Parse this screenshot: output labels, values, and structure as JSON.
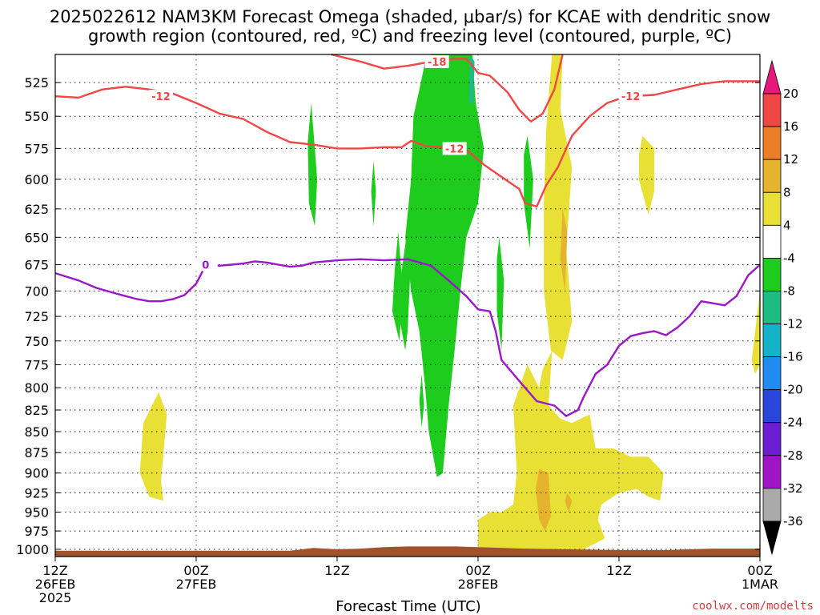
{
  "chart_data": {
    "type": "contour",
    "title_line1": "2025022612 NAM3KM Forecast Omega (shaded, μbar/s) for KCAE with dendritic snow",
    "title_line2": "growth region (contoured, red, ºC) and freezing level (contoured, purple, ºC)",
    "xlabel": "Forecast Time (UTC)",
    "credit": "coolwx.com/modelts",
    "x_range_hours": [
      0,
      60
    ],
    "y_range_mb": [
      505,
      1010
    ],
    "y_scale": "log",
    "grid": true,
    "x_ticks": [
      {
        "hour": 0,
        "lines": [
          "12Z",
          "26FEB",
          "2025"
        ]
      },
      {
        "hour": 12,
        "lines": [
          "00Z",
          "27FEB"
        ]
      },
      {
        "hour": 24,
        "lines": [
          "12Z"
        ]
      },
      {
        "hour": 36,
        "lines": [
          "00Z",
          "28FEB"
        ]
      },
      {
        "hour": 48,
        "lines": [
          "12Z"
        ]
      },
      {
        "hour": 60,
        "lines": [
          "00Z",
          "1MAR"
        ]
      }
    ],
    "y_ticks": [
      "525",
      "550",
      "575",
      "600",
      "625",
      "650",
      "675",
      "700",
      "725",
      "750",
      "775",
      "800",
      "825",
      "850",
      "875",
      "900",
      "925",
      "950",
      "975",
      "1000"
    ],
    "colorbar": {
      "labels": [
        "20",
        "16",
        "12",
        "8",
        "4",
        "-4",
        "-8",
        "-12",
        "-16",
        "-20",
        "-24",
        "-28",
        "-32",
        "-36"
      ],
      "bands": [
        {
          "lo": 20,
          "hi": 24,
          "color": "#e8187a"
        },
        {
          "lo": 16,
          "hi": 20,
          "color": "#f04646"
        },
        {
          "lo": 12,
          "hi": 16,
          "color": "#ee7d28"
        },
        {
          "lo": 8,
          "hi": 12,
          "color": "#e6b32e"
        },
        {
          "lo": 4,
          "hi": 8,
          "color": "#e8e035"
        },
        {
          "lo": -4,
          "hi": 4,
          "color": "#ffffff"
        },
        {
          "lo": -8,
          "hi": -4,
          "color": "#1ecc1e"
        },
        {
          "lo": -12,
          "hi": -8,
          "color": "#1ebb82"
        },
        {
          "lo": -16,
          "hi": -12,
          "color": "#14b4c8"
        },
        {
          "lo": -20,
          "hi": -16,
          "color": "#1e8cf0"
        },
        {
          "lo": -24,
          "hi": -20,
          "color": "#2846dc"
        },
        {
          "lo": -28,
          "hi": -24,
          "color": "#6e1ed2"
        },
        {
          "lo": -32,
          "hi": -28,
          "color": "#a014c8"
        },
        {
          "lo": -36,
          "hi": -32,
          "color": "#aaaaaa"
        },
        {
          "lo": -40,
          "hi": -36,
          "color": "#000000"
        }
      ]
    },
    "shaded_regions": [
      {
        "name": "green-main-column",
        "color": "#1ecc1e",
        "points": [
          [
            32.0,
            505
          ],
          [
            35.5,
            505
          ],
          [
            35.8,
            540
          ],
          [
            36.5,
            575
          ],
          [
            36.0,
            620
          ],
          [
            35.0,
            650
          ],
          [
            34.5,
            700
          ],
          [
            34.0,
            760
          ],
          [
            33.5,
            820
          ],
          [
            33.0,
            900
          ],
          [
            32.5,
            905
          ],
          [
            31.8,
            850
          ],
          [
            31.5,
            800
          ],
          [
            31.0,
            740
          ],
          [
            30.3,
            700
          ],
          [
            29.8,
            650
          ],
          [
            30.3,
            600
          ],
          [
            30.5,
            550
          ],
          [
            31.0,
            530
          ],
          [
            31.5,
            510
          ]
        ]
      },
      {
        "name": "green-column-left-edge",
        "color": "#1ecc1e",
        "points": [
          [
            30.3,
            620
          ],
          [
            29.5,
            680
          ],
          [
            29.2,
            720
          ],
          [
            29.8,
            760
          ],
          [
            30.0,
            740
          ],
          [
            30.2,
            690
          ]
        ]
      },
      {
        "name": "green-streak-22z",
        "color": "#1ecc1e",
        "points": [
          [
            21.8,
            540
          ],
          [
            22.3,
            600
          ],
          [
            22.1,
            640
          ],
          [
            21.6,
            620
          ],
          [
            21.5,
            570
          ]
        ]
      },
      {
        "name": "green-streak-27z",
        "color": "#1ecc1e",
        "points": [
          [
            27.1,
            585
          ],
          [
            27.3,
            610
          ],
          [
            27.1,
            640
          ],
          [
            26.9,
            610
          ]
        ]
      },
      {
        "name": "green-streak-29z",
        "color": "#1ecc1e",
        "points": [
          [
            29.2,
            645
          ],
          [
            29.6,
            700
          ],
          [
            29.3,
            750
          ],
          [
            28.7,
            720
          ],
          [
            28.9,
            680
          ]
        ]
      },
      {
        "name": "green-streak-31z",
        "color": "#1ecc1e",
        "points": [
          [
            31.2,
            785
          ],
          [
            31.4,
            820
          ],
          [
            31.2,
            845
          ],
          [
            31.0,
            815
          ]
        ]
      },
      {
        "name": "green-streak-38z",
        "color": "#1ecc1e",
        "points": [
          [
            37.8,
            650
          ],
          [
            38.2,
            690
          ],
          [
            38.0,
            760
          ],
          [
            37.6,
            720
          ],
          [
            37.6,
            670
          ]
        ]
      },
      {
        "name": "green-streak-40z",
        "color": "#1ecc1e",
        "points": [
          [
            40.2,
            565
          ],
          [
            40.7,
            600
          ],
          [
            40.4,
            660
          ],
          [
            39.9,
            620
          ],
          [
            39.9,
            580
          ]
        ]
      },
      {
        "name": "yellow-tall-column",
        "color": "#e8e035",
        "points": [
          [
            42.3,
            505
          ],
          [
            43.2,
            505
          ],
          [
            43.0,
            545
          ],
          [
            44.0,
            590
          ],
          [
            43.5,
            660
          ],
          [
            44.0,
            730
          ],
          [
            43.2,
            770
          ],
          [
            42.2,
            760
          ],
          [
            41.6,
            700
          ],
          [
            41.6,
            620
          ],
          [
            41.8,
            560
          ]
        ]
      },
      {
        "name": "yellow-lower-region",
        "color": "#e8e035",
        "points": [
          [
            38.0,
            950
          ],
          [
            39.0,
            940
          ],
          [
            39.3,
            900
          ],
          [
            39.0,
            820
          ],
          [
            40.2,
            775
          ],
          [
            41.2,
            800
          ],
          [
            41.5,
            780
          ],
          [
            42.3,
            760
          ],
          [
            42.0,
            820
          ],
          [
            43.0,
            835
          ],
          [
            44.0,
            840
          ],
          [
            45.5,
            830
          ],
          [
            46.0,
            870
          ],
          [
            47.5,
            870
          ],
          [
            49.0,
            880
          ],
          [
            50.5,
            880
          ],
          [
            51.8,
            900
          ],
          [
            51.5,
            935
          ],
          [
            50.5,
            930
          ],
          [
            49.5,
            920
          ],
          [
            48.0,
            925
          ],
          [
            46.5,
            940
          ],
          [
            46.2,
            960
          ],
          [
            46.8,
            985
          ],
          [
            45.0,
            1000
          ],
          [
            39.0,
            1005
          ],
          [
            36.0,
            1008
          ],
          [
            36.0,
            960
          ],
          [
            37.0,
            950
          ]
        ]
      },
      {
        "name": "yellow-left-blob",
        "color": "#e8e035",
        "points": [
          [
            8.8,
            805
          ],
          [
            9.5,
            830
          ],
          [
            9.0,
            910
          ],
          [
            9.2,
            935
          ],
          [
            8.0,
            930
          ],
          [
            7.2,
            900
          ],
          [
            7.5,
            840
          ]
        ]
      },
      {
        "name": "yellow-right-blob",
        "color": "#e8e035",
        "points": [
          [
            50.0,
            565
          ],
          [
            51.0,
            575
          ],
          [
            51.0,
            610
          ],
          [
            50.5,
            630
          ],
          [
            49.7,
            600
          ],
          [
            49.7,
            580
          ]
        ]
      },
      {
        "name": "yellow-right-edge-blob",
        "color": "#e8e035",
        "points": [
          [
            60.0,
            700
          ],
          [
            59.6,
            740
          ],
          [
            59.3,
            770
          ],
          [
            59.6,
            785
          ],
          [
            60.0,
            775
          ]
        ]
      },
      {
        "name": "orange-streak-43z",
        "color": "#e6b32e",
        "points": [
          [
            43.2,
            625
          ],
          [
            43.6,
            645
          ],
          [
            43.4,
            700
          ],
          [
            43.0,
            670
          ]
        ]
      },
      {
        "name": "orange-lower-blob",
        "color": "#e6b32e",
        "points": [
          [
            41.2,
            895
          ],
          [
            42.0,
            900
          ],
          [
            42.2,
            955
          ],
          [
            41.7,
            975
          ],
          [
            41.2,
            960
          ],
          [
            40.9,
            920
          ]
        ]
      },
      {
        "name": "orange-small-blob",
        "color": "#e6b32e",
        "points": [
          [
            43.6,
            925
          ],
          [
            44.0,
            935
          ],
          [
            43.7,
            950
          ],
          [
            43.4,
            935
          ]
        ]
      },
      {
        "name": "cyan-streak",
        "color": "#1ebb82",
        "points": [
          [
            35.3,
            505
          ],
          [
            35.7,
            510
          ],
          [
            35.6,
            540
          ],
          [
            35.2,
            540
          ]
        ]
      }
    ],
    "dendritic_contours": [
      {
        "label": "-12",
        "label_at": [
          9.0,
          535
        ],
        "points": [
          [
            0,
            535
          ],
          [
            2,
            536
          ],
          [
            4,
            530
          ],
          [
            6,
            528
          ],
          [
            8,
            530
          ],
          [
            10,
            533
          ],
          [
            12,
            540
          ],
          [
            14,
            548
          ],
          [
            16,
            552
          ],
          [
            18,
            562
          ],
          [
            20,
            570
          ],
          [
            22,
            572
          ],
          [
            24,
            575
          ],
          [
            26,
            575
          ],
          [
            28,
            574
          ],
          [
            29.5,
            574
          ],
          [
            30.3,
            569
          ],
          [
            31.5,
            573
          ],
          [
            33,
            574
          ],
          [
            35,
            576
          ],
          [
            36.5,
            588
          ],
          [
            38,
            598
          ],
          [
            39.5,
            608
          ],
          [
            40,
            620
          ],
          [
            41.0,
            623
          ],
          [
            41.8,
            605
          ],
          [
            42.8,
            590
          ],
          [
            44,
            565
          ],
          [
            45.5,
            550
          ],
          [
            47,
            540
          ],
          [
            48,
            537
          ],
          [
            49,
            535
          ],
          [
            51,
            534
          ],
          [
            53,
            530
          ],
          [
            55,
            526
          ],
          [
            57,
            524
          ],
          [
            60,
            524
          ]
        ]
      },
      {
        "label": "-18",
        "label_at": [
          32.5,
          510
        ],
        "points": [
          [
            23.5,
            505
          ],
          [
            26,
            510
          ],
          [
            28,
            515
          ],
          [
            30,
            513
          ],
          [
            32,
            510
          ],
          [
            34,
            508
          ],
          [
            35,
            508
          ],
          [
            36,
            518
          ],
          [
            37,
            520
          ],
          [
            38.5,
            532
          ],
          [
            39.5,
            545
          ],
          [
            40.5,
            554
          ],
          [
            41.5,
            548
          ],
          [
            42.5,
            530
          ],
          [
            43.2,
            505
          ]
        ]
      },
      {
        "label": "-12",
        "label_at": [
          34.0,
          575
        ],
        "points": []
      },
      {
        "label": "-12",
        "label_at": [
          49.0,
          535
        ],
        "points": []
      }
    ],
    "freezing_contours": [
      {
        "label": "0",
        "label_at": [
          12.8,
          675
        ],
        "points": [
          [
            0,
            683
          ],
          [
            2,
            690
          ],
          [
            3.5,
            697
          ],
          [
            5,
            702
          ],
          [
            6,
            705
          ],
          [
            7,
            708
          ],
          [
            8,
            710
          ],
          [
            9,
            710
          ],
          [
            10,
            708
          ],
          [
            11,
            704
          ],
          [
            12,
            693
          ],
          [
            12.6,
            680
          ],
          [
            13,
            675
          ],
          [
            14,
            676
          ],
          [
            15,
            675
          ],
          [
            16,
            674
          ],
          [
            17,
            672
          ],
          [
            18,
            673
          ],
          [
            19,
            675
          ],
          [
            20,
            677
          ],
          [
            21,
            676
          ],
          [
            22,
            673
          ],
          [
            24,
            671
          ],
          [
            26,
            670
          ],
          [
            28,
            671
          ],
          [
            30,
            670
          ],
          [
            32,
            676
          ],
          [
            33.5,
            690
          ],
          [
            35,
            705
          ],
          [
            36,
            718
          ],
          [
            37,
            720
          ],
          [
            37.5,
            740
          ],
          [
            38,
            770
          ],
          [
            39,
            785
          ],
          [
            40,
            800
          ],
          [
            41,
            815
          ],
          [
            42.5,
            820
          ],
          [
            43.5,
            832
          ],
          [
            44.5,
            825
          ],
          [
            45,
            810
          ],
          [
            46,
            785
          ],
          [
            47,
            775
          ],
          [
            48,
            755
          ],
          [
            49,
            745
          ],
          [
            50,
            742
          ],
          [
            51,
            740
          ],
          [
            52,
            744
          ],
          [
            53,
            736
          ],
          [
            54,
            725
          ],
          [
            55,
            710
          ],
          [
            56,
            712
          ],
          [
            57,
            714
          ],
          [
            58,
            705
          ],
          [
            59,
            685
          ],
          [
            60,
            675
          ]
        ]
      }
    ],
    "terrain_color": "#a0522d"
  }
}
